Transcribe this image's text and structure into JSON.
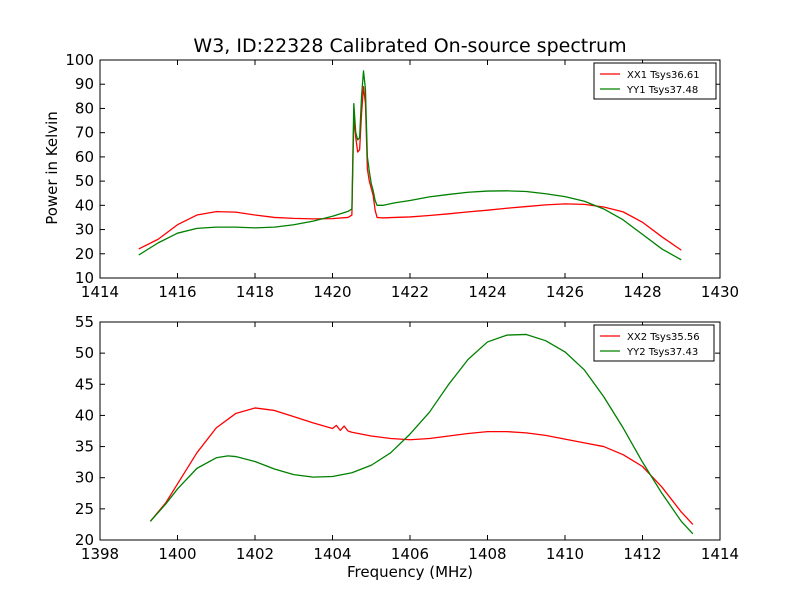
{
  "chart_data": [
    {
      "type": "line",
      "title": "W3, ID:22328 Calibrated On-source spectrum",
      "xlabel": "",
      "ylabel": "Power in Kelvin",
      "xlim": [
        1414,
        1430
      ],
      "ylim": [
        10,
        100
      ],
      "xticks": [
        1414,
        1416,
        1418,
        1420,
        1422,
        1424,
        1426,
        1428,
        1430
      ],
      "yticks": [
        10,
        20,
        30,
        40,
        50,
        60,
        70,
        80,
        90,
        100
      ],
      "grid": false,
      "legend": "top-right",
      "series": [
        {
          "name": "XX1 Tsys36.61",
          "color": "#ff0000",
          "points": [
            [
              1415.0,
              22
            ],
            [
              1415.5,
              26
            ],
            [
              1416.0,
              32
            ],
            [
              1416.5,
              36
            ],
            [
              1417.0,
              37.4
            ],
            [
              1417.5,
              37.2
            ],
            [
              1418.0,
              36
            ],
            [
              1418.5,
              35
            ],
            [
              1419.0,
              34.6
            ],
            [
              1419.5,
              34.4
            ],
            [
              1420.0,
              34.5
            ],
            [
              1420.4,
              35
            ],
            [
              1420.5,
              36
            ],
            [
              1420.55,
              76
            ],
            [
              1420.6,
              68
            ],
            [
              1420.65,
              62
            ],
            [
              1420.7,
              63
            ],
            [
              1420.75,
              78
            ],
            [
              1420.8,
              89
            ],
            [
              1420.85,
              82
            ],
            [
              1420.9,
              55
            ],
            [
              1420.95,
              50
            ],
            [
              1421.0,
              47
            ],
            [
              1421.05,
              44
            ],
            [
              1421.1,
              38
            ],
            [
              1421.15,
              35
            ],
            [
              1421.3,
              34.8
            ],
            [
              1421.6,
              35
            ],
            [
              1422.0,
              35.2
            ],
            [
              1422.5,
              35.8
            ],
            [
              1423.0,
              36.5
            ],
            [
              1423.5,
              37.3
            ],
            [
              1424.0,
              38
            ],
            [
              1424.5,
              38.8
            ],
            [
              1425.0,
              39.5
            ],
            [
              1425.5,
              40.2
            ],
            [
              1426.0,
              40.6
            ],
            [
              1426.5,
              40.4
            ],
            [
              1427.0,
              39.3
            ],
            [
              1427.5,
              37.3
            ],
            [
              1428.0,
              33
            ],
            [
              1428.5,
              27
            ],
            [
              1429.0,
              21.5
            ]
          ]
        },
        {
          "name": "YY1 Tsys37.48",
          "color": "#008000",
          "points": [
            [
              1415.0,
              19.5
            ],
            [
              1415.5,
              24.5
            ],
            [
              1416.0,
              28.5
            ],
            [
              1416.5,
              30.5
            ],
            [
              1417.0,
              31
            ],
            [
              1417.5,
              31
            ],
            [
              1418.0,
              30.7
            ],
            [
              1418.5,
              31
            ],
            [
              1419.0,
              32
            ],
            [
              1419.5,
              33.5
            ],
            [
              1420.0,
              35.5
            ],
            [
              1420.4,
              37.5
            ],
            [
              1420.5,
              38.5
            ],
            [
              1420.55,
              82
            ],
            [
              1420.6,
              70
            ],
            [
              1420.65,
              67
            ],
            [
              1420.7,
              68
            ],
            [
              1420.75,
              85
            ],
            [
              1420.8,
              95.5
            ],
            [
              1420.85,
              88
            ],
            [
              1420.9,
              60
            ],
            [
              1420.95,
              54
            ],
            [
              1421.0,
              49
            ],
            [
              1421.05,
              46
            ],
            [
              1421.1,
              42
            ],
            [
              1421.15,
              40
            ],
            [
              1421.3,
              40
            ],
            [
              1421.6,
              41
            ],
            [
              1422.0,
              42
            ],
            [
              1422.5,
              43.5
            ],
            [
              1423.0,
              44.5
            ],
            [
              1423.5,
              45.4
            ],
            [
              1424.0,
              45.9
            ],
            [
              1424.5,
              46
            ],
            [
              1425.0,
              45.7
            ],
            [
              1425.5,
              44.8
            ],
            [
              1426.0,
              43.6
            ],
            [
              1426.5,
              41.7
            ],
            [
              1427.0,
              38.5
            ],
            [
              1427.5,
              34
            ],
            [
              1428.0,
              28
            ],
            [
              1428.5,
              22
            ],
            [
              1429.0,
              17.5
            ]
          ]
        }
      ]
    },
    {
      "type": "line",
      "title": "",
      "xlabel": "Frequency (MHz)",
      "ylabel": "",
      "xlim": [
        1398,
        1414
      ],
      "ylim": [
        20,
        55
      ],
      "xticks": [
        1398,
        1400,
        1402,
        1404,
        1406,
        1408,
        1410,
        1412,
        1414
      ],
      "yticks": [
        20,
        25,
        30,
        35,
        40,
        45,
        50,
        55
      ],
      "grid": false,
      "legend": "top-right",
      "series": [
        {
          "name": "XX2 Tsys35.56",
          "color": "#ff0000",
          "points": [
            [
              1399.3,
              23
            ],
            [
              1399.7,
              26
            ],
            [
              1400.0,
              29
            ],
            [
              1400.5,
              34
            ],
            [
              1401.0,
              38
            ],
            [
              1401.5,
              40.3
            ],
            [
              1402.0,
              41.2
            ],
            [
              1402.5,
              40.8
            ],
            [
              1403.0,
              39.8
            ],
            [
              1403.5,
              38.8
            ],
            [
              1404.0,
              37.9
            ],
            [
              1404.1,
              38.4
            ],
            [
              1404.2,
              37.6
            ],
            [
              1404.3,
              38.3
            ],
            [
              1404.4,
              37.5
            ],
            [
              1404.5,
              37.3
            ],
            [
              1405.0,
              36.7
            ],
            [
              1405.5,
              36.3
            ],
            [
              1406.0,
              36.1
            ],
            [
              1406.5,
              36.3
            ],
            [
              1407.0,
              36.7
            ],
            [
              1407.5,
              37.1
            ],
            [
              1408.0,
              37.4
            ],
            [
              1408.5,
              37.4
            ],
            [
              1409.0,
              37.2
            ],
            [
              1409.5,
              36.8
            ],
            [
              1410.0,
              36.2
            ],
            [
              1410.5,
              35.6
            ],
            [
              1411.0,
              35
            ],
            [
              1411.5,
              33.7
            ],
            [
              1412.0,
              31.8
            ],
            [
              1412.5,
              28.5
            ],
            [
              1413.0,
              24.5
            ],
            [
              1413.3,
              22.5
            ]
          ]
        },
        {
          "name": "YY2 Tsys37.43",
          "color": "#008000",
          "points": [
            [
              1399.3,
              23
            ],
            [
              1399.7,
              25.8
            ],
            [
              1400.0,
              28.2
            ],
            [
              1400.5,
              31.5
            ],
            [
              1401.0,
              33.2
            ],
            [
              1401.3,
              33.5
            ],
            [
              1401.5,
              33.4
            ],
            [
              1402.0,
              32.6
            ],
            [
              1402.5,
              31.4
            ],
            [
              1403.0,
              30.5
            ],
            [
              1403.5,
              30.1
            ],
            [
              1404.0,
              30.2
            ],
            [
              1404.5,
              30.8
            ],
            [
              1405.0,
              32
            ],
            [
              1405.5,
              34
            ],
            [
              1406.0,
              37
            ],
            [
              1406.5,
              40.5
            ],
            [
              1407.0,
              45
            ],
            [
              1407.5,
              49
            ],
            [
              1408.0,
              51.8
            ],
            [
              1408.5,
              52.9
            ],
            [
              1409.0,
              53
            ],
            [
              1409.5,
              52
            ],
            [
              1410.0,
              50.2
            ],
            [
              1410.5,
              47.3
            ],
            [
              1411.0,
              43
            ],
            [
              1411.5,
              38
            ],
            [
              1412.0,
              32.5
            ],
            [
              1412.5,
              27.5
            ],
            [
              1413.0,
              23
            ],
            [
              1413.3,
              21
            ]
          ]
        }
      ]
    }
  ]
}
